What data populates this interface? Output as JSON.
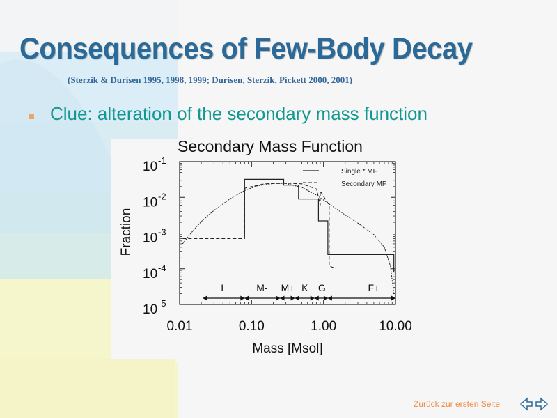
{
  "slide": {
    "title": "Consequences of Few-Body Decay",
    "subtitle": "(Sterzik & Durisen 1995, 1998, 1999; Durisen, Sterzik, Pickett 2000, 2001)",
    "bullet": "Clue: alteration of the secondary mass function",
    "footer_link": "Zurück zur ersten Seite",
    "nav_icons": [
      "arrow-left-icon",
      "arrow-right-icon"
    ],
    "colors": {
      "title": "#2b6a98",
      "bullet_text": "#129890",
      "bullet_marker": "#e8a868",
      "footer_link": "#ee8a40"
    }
  },
  "chart_data": {
    "type": "line",
    "title": "Secondary Mass Function",
    "xlabel": "Mass [Msol]",
    "ylabel": "Fraction",
    "xscale": "log",
    "yscale": "log",
    "xlim": [
      0.01,
      10.0
    ],
    "ylim": [
      1e-05,
      0.1
    ],
    "x_ticks": [
      {
        "value": 0.01,
        "label": "0.01"
      },
      {
        "value": 0.1,
        "label": "0.10"
      },
      {
        "value": 1.0,
        "label": "1.00"
      },
      {
        "value": 10.0,
        "label": "10.00"
      }
    ],
    "y_ticks": [
      {
        "value": 1e-05,
        "label": "10",
        "exp": "-5"
      },
      {
        "value": 0.0001,
        "label": "10",
        "exp": "-4"
      },
      {
        "value": 0.001,
        "label": "10",
        "exp": "-3"
      },
      {
        "value": 0.01,
        "label": "10",
        "exp": "-2"
      },
      {
        "value": 0.1,
        "label": "10",
        "exp": "-1"
      }
    ],
    "legend": {
      "placement": "top-right",
      "entries": [
        "Single * MF",
        "Secondary MF"
      ]
    },
    "series": [
      {
        "name": "Single * MF",
        "style": "solid-steps",
        "points": [
          [
            0.08,
            0.0008
          ],
          [
            0.08,
            0.032
          ],
          [
            0.28,
            0.032
          ],
          [
            0.28,
            0.022
          ],
          [
            0.45,
            0.022
          ],
          [
            0.45,
            0.009
          ],
          [
            0.85,
            0.009
          ],
          [
            0.85,
            0.0022
          ],
          [
            1.15,
            0.0022
          ],
          [
            1.15,
            0.00025
          ],
          [
            9.5,
            0.00025
          ],
          [
            9.5,
            8e-05
          ]
        ]
      },
      {
        "name": "Secondary MF",
        "style": "dashed-steps",
        "points": [
          [
            0.011,
            0.0007
          ],
          [
            0.08,
            0.0007
          ],
          [
            0.08,
            0.018
          ],
          [
            0.15,
            0.024
          ],
          [
            0.3,
            0.025
          ],
          [
            0.5,
            0.024
          ],
          [
            0.8,
            0.017
          ],
          [
            0.9,
            0.006
          ],
          [
            0.9,
            0.015
          ],
          [
            1.2,
            0.006
          ],
          [
            1.2,
            0.00012
          ],
          [
            1.5,
            0.0001
          ]
        ]
      },
      {
        "name": "",
        "style": "smooth-curve",
        "points": [
          [
            0.011,
            0.0005
          ],
          [
            0.015,
            0.0011
          ],
          [
            0.02,
            0.0021
          ],
          [
            0.03,
            0.0043
          ],
          [
            0.05,
            0.009
          ],
          [
            0.08,
            0.0155
          ],
          [
            0.12,
            0.021
          ],
          [
            0.2,
            0.0245
          ],
          [
            0.3,
            0.0245
          ],
          [
            0.5,
            0.019
          ],
          [
            0.8,
            0.0115
          ],
          [
            1.2,
            0.0065
          ],
          [
            2.0,
            0.0032
          ],
          [
            3.0,
            0.0019
          ],
          [
            5.0,
            0.0009
          ],
          [
            7.0,
            0.0004
          ],
          [
            8.5,
            0.00012
          ],
          [
            9.5,
            2e-05
          ]
        ]
      }
    ],
    "mass_classes": [
      {
        "label": "L",
        "from": 0.021,
        "to": 0.08,
        "label_at": 0.041
      },
      {
        "label": "M-",
        "from": 0.08,
        "to": 0.25,
        "label_at": 0.14
      },
      {
        "label": "M+",
        "from": 0.25,
        "to": 0.4,
        "label_at": 0.32
      },
      {
        "label": "K",
        "from": 0.4,
        "to": 0.75,
        "label_at": 0.55
      },
      {
        "label": "G",
        "from": 0.75,
        "to": 1.15,
        "label_at": 0.95
      },
      {
        "label": "F+",
        "from": 1.15,
        "to": 10.0,
        "label_at": 5.0
      }
    ]
  }
}
